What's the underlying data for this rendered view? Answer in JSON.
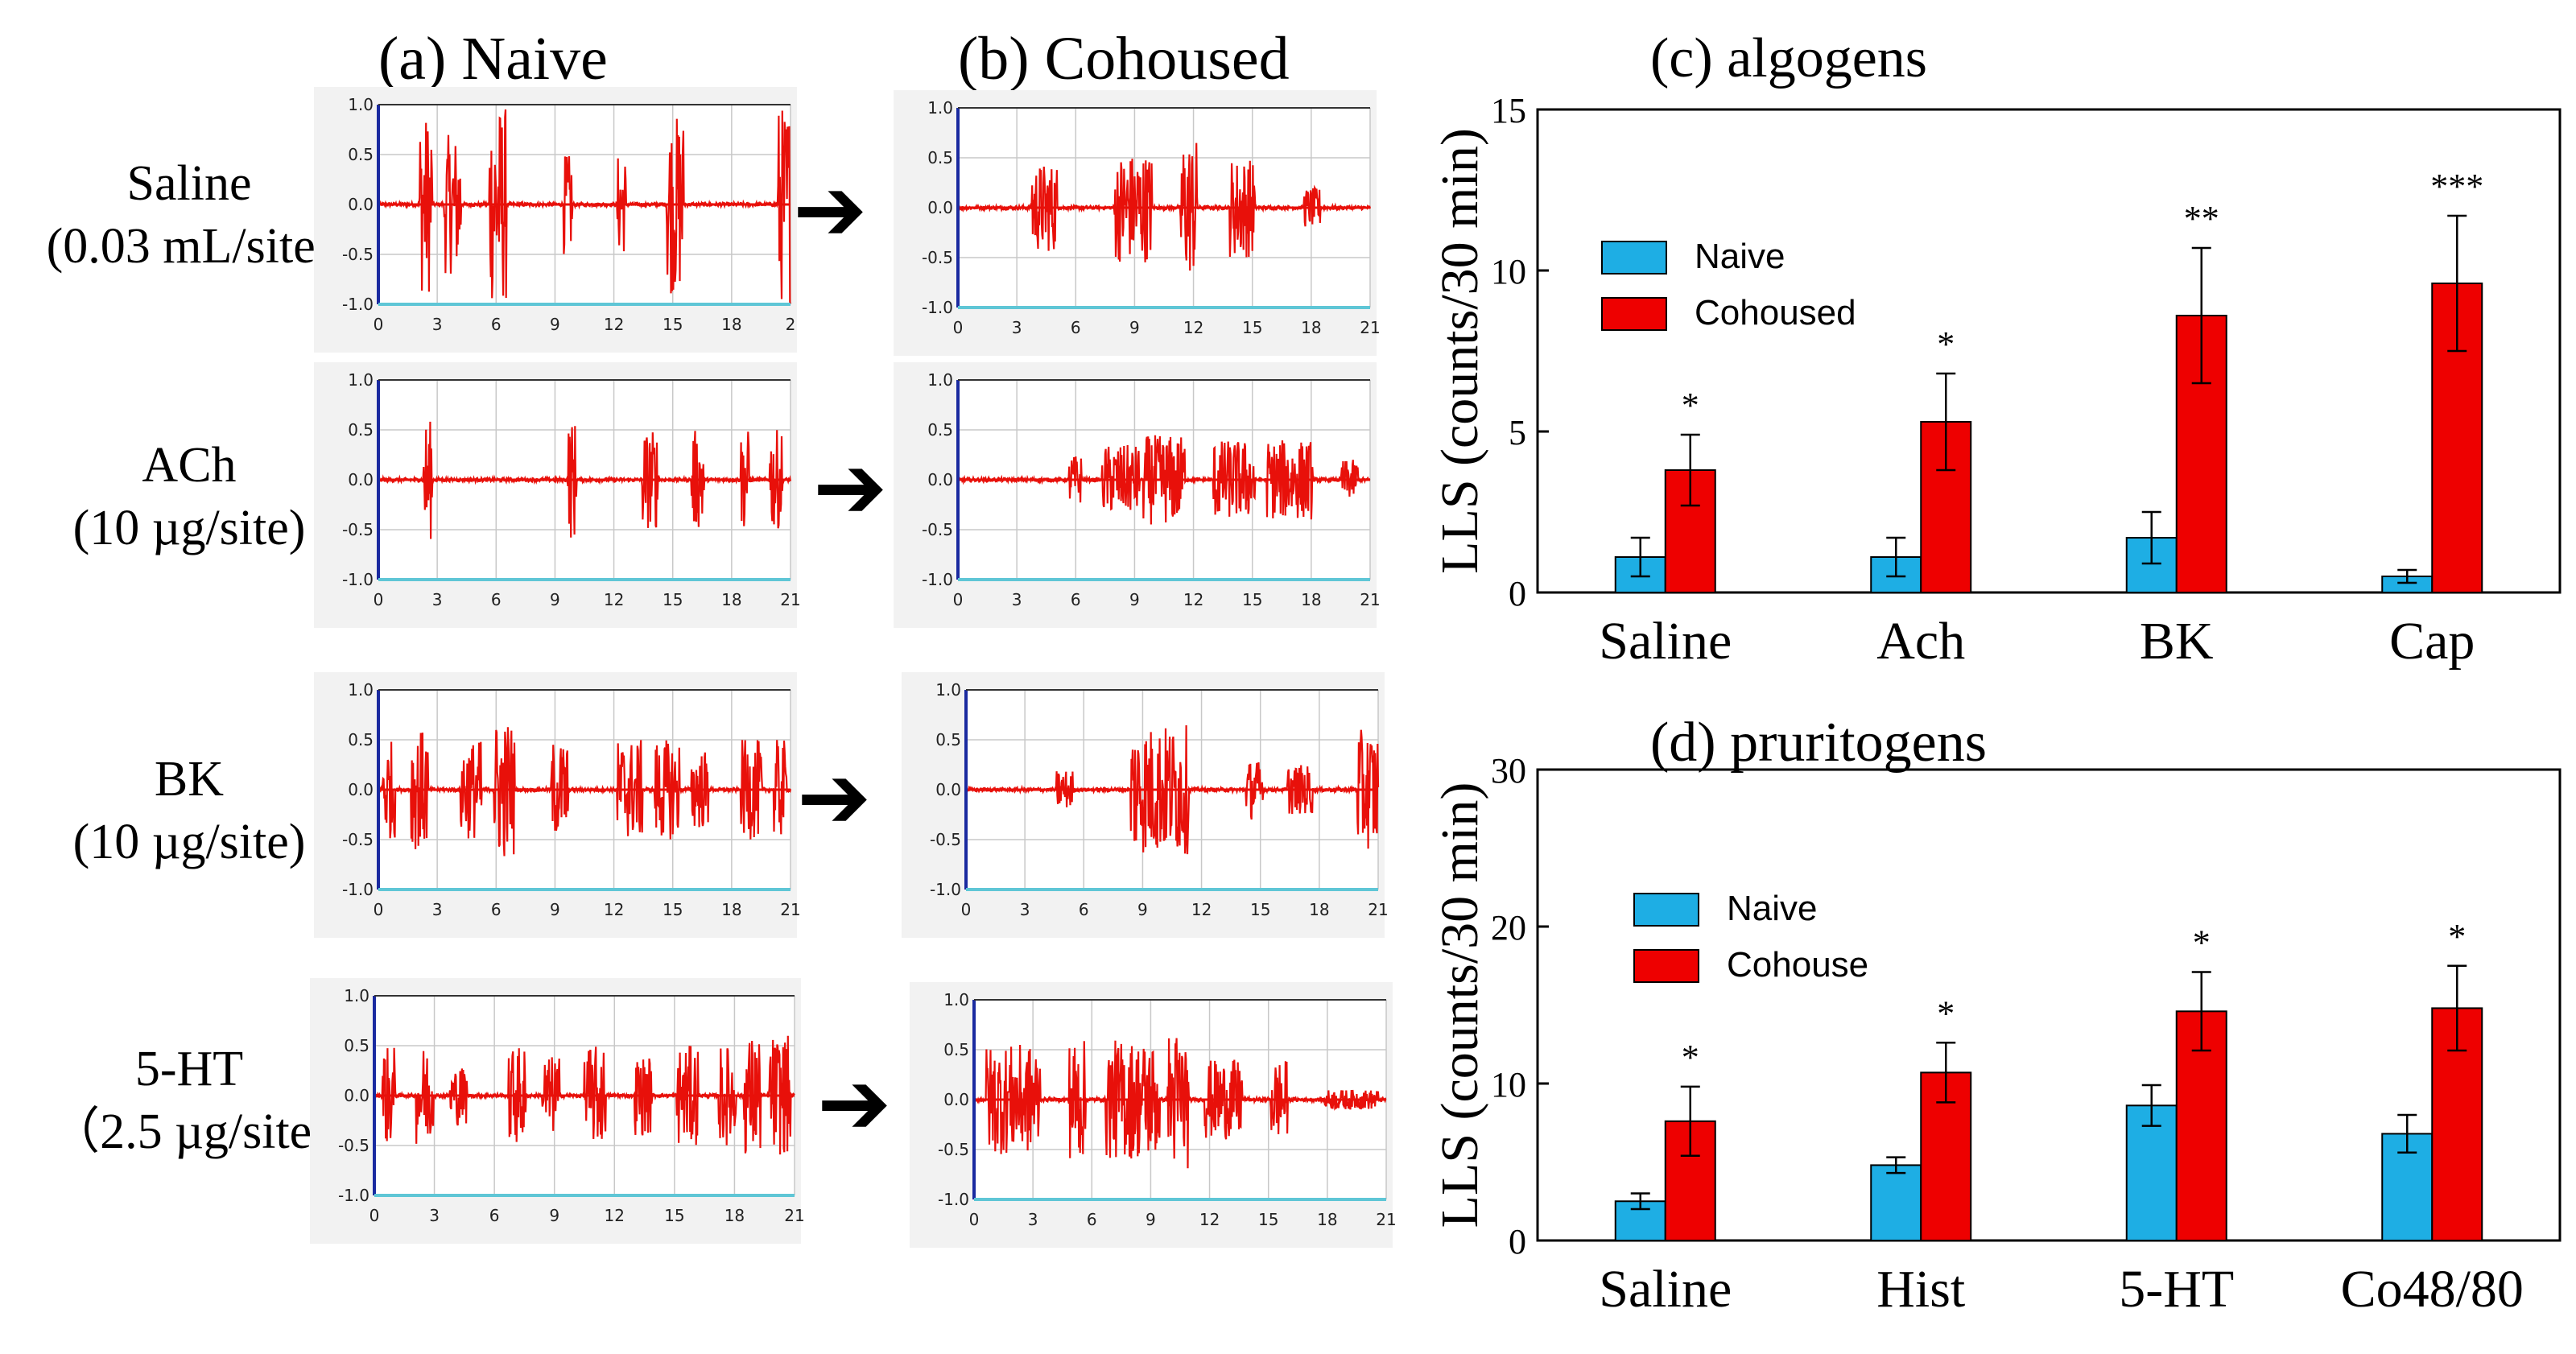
{
  "panels": {
    "a_title": "(a) Naive",
    "b_title": "(b) Cohoused"
  },
  "rows": [
    {
      "name": "Saline",
      "dose": "(0.03 mL/site)"
    },
    {
      "name": "ACh",
      "dose": "(10 µg/site)"
    },
    {
      "name": "BK",
      "dose": "(10 µg/site)"
    },
    {
      "name": "5-HT",
      "dose": "（2.5 µg/site)"
    }
  ],
  "trace_axis": {
    "y_ticks": [
      "1.0",
      "0.5",
      "0.0",
      "-0.5",
      "-1.0"
    ],
    "x_ticks": [
      "0",
      "3",
      "6",
      "9",
      "12",
      "15",
      "18",
      "21"
    ],
    "x_ticks_truncated": [
      "0",
      "3",
      "6",
      "9",
      "12",
      "15",
      "18",
      "2"
    ],
    "trace_color": "#e8100a",
    "baseline_color": "#5fc6d6",
    "axis_color": "#1a2aa0"
  },
  "arrow_glyph": "➔",
  "colors": {
    "naive": "#1eaee4",
    "cohoused": "#ee0000"
  },
  "chart_data": [
    {
      "type": "bar",
      "title": "(c) algogens",
      "ylabel": "LLS (counts/30 min)",
      "xlabel": "",
      "ylim": [
        0,
        15
      ],
      "yticks": [
        0,
        5,
        10,
        15
      ],
      "categories": [
        "Saline",
        "Ach",
        "BK",
        "Cap"
      ],
      "series": [
        {
          "name": "Naive",
          "values": [
            1.1,
            1.1,
            1.7,
            0.5
          ],
          "errors": [
            0.6,
            0.6,
            0.8,
            0.2
          ]
        },
        {
          "name": "Cohoused",
          "values": [
            3.8,
            5.3,
            8.6,
            9.6
          ],
          "errors": [
            1.1,
            1.5,
            2.1,
            2.1
          ]
        }
      ],
      "significance": [
        "*",
        "*",
        "**",
        "***"
      ],
      "legend": [
        "Naive",
        "Cohoused"
      ],
      "legend_position": "left"
    },
    {
      "type": "bar",
      "title": "(d) pruritogens",
      "ylabel": "LLS (counts/30 min)",
      "xlabel": "",
      "ylim": [
        0,
        30
      ],
      "yticks": [
        0,
        10,
        20,
        30
      ],
      "categories": [
        "Saline",
        "Hist",
        "5-HT",
        "Co48/80"
      ],
      "series": [
        {
          "name": "Naive",
          "values": [
            2.5,
            4.8,
            8.6,
            6.8
          ],
          "errors": [
            0.5,
            0.5,
            1.3,
            1.2
          ]
        },
        {
          "name": "Cohouse",
          "values": [
            7.6,
            10.7,
            14.6,
            14.8
          ],
          "errors": [
            2.2,
            1.9,
            2.5,
            2.7
          ]
        }
      ],
      "significance": [
        "*",
        "*",
        "*",
        "*"
      ],
      "legend": [
        "Naive",
        "Cohouse"
      ],
      "legend_position": "left"
    }
  ]
}
